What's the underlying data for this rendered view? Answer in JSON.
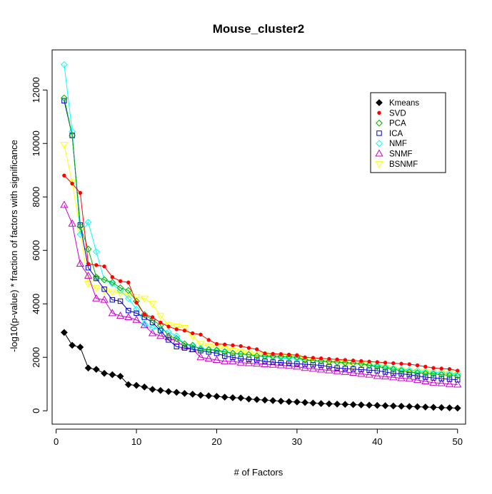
{
  "chart_data": {
    "type": "line",
    "title": "Mouse_cluster2",
    "xlabel": "# of Factors",
    "ylabel": "-log10(p-value) * fraction of factors with significance",
    "xlim": [
      -0.5,
      51
    ],
    "ylim": [
      -500,
      13500
    ],
    "xticks": [
      0,
      10,
      20,
      30,
      40,
      50
    ],
    "yticks": [
      0,
      2000,
      4000,
      6000,
      8000,
      10000,
      12000
    ],
    "grid": false,
    "legend_position": "top-right",
    "x": [
      1,
      2,
      3,
      4,
      5,
      6,
      7,
      8,
      9,
      10,
      11,
      12,
      13,
      14,
      15,
      16,
      17,
      18,
      19,
      20,
      21,
      22,
      23,
      24,
      25,
      26,
      27,
      28,
      29,
      30,
      31,
      32,
      33,
      34,
      35,
      36,
      37,
      38,
      39,
      40,
      41,
      42,
      43,
      44,
      45,
      46,
      47,
      48,
      49,
      50
    ],
    "series": [
      {
        "name": "Kmeans",
        "color": "#000000",
        "marker": "diamond-filled",
        "values": [
          2930,
          2450,
          2380,
          1600,
          1550,
          1400,
          1350,
          1290,
          980,
          950,
          890,
          800,
          760,
          720,
          690,
          650,
          620,
          580,
          560,
          540,
          510,
          490,
          480,
          440,
          420,
          400,
          380,
          360,
          340,
          330,
          310,
          290,
          270,
          260,
          250,
          240,
          230,
          220,
          210,
          200,
          190,
          180,
          170,
          160,
          150,
          140,
          130,
          120,
          110,
          100
        ]
      },
      {
        "name": "SVD",
        "color": "#ff0000",
        "marker": "dot-filled",
        "values": [
          8800,
          8500,
          8150,
          5500,
          5450,
          5400,
          5000,
          4850,
          4800,
          4050,
          3600,
          3500,
          3300,
          3150,
          3050,
          3000,
          2900,
          2850,
          2650,
          2500,
          2480,
          2450,
          2420,
          2350,
          2300,
          2150,
          2130,
          2120,
          2100,
          2080,
          2000,
          1980,
          1960,
          1940,
          1920,
          1900,
          1880,
          1860,
          1840,
          1820,
          1800,
          1780,
          1760,
          1740,
          1700,
          1650,
          1600,
          1580,
          1560,
          1500
        ]
      },
      {
        "name": "PCA",
        "color": "#00b000",
        "marker": "diamond-open",
        "values": [
          11700,
          10300,
          6900,
          6050,
          5000,
          4900,
          4800,
          4600,
          4500,
          4100,
          3600,
          3400,
          3200,
          2800,
          2700,
          2500,
          2450,
          2300,
          2280,
          2260,
          2200,
          2150,
          2130,
          2100,
          2050,
          2050,
          2040,
          2030,
          2020,
          2000,
          1900,
          1880,
          1860,
          1840,
          1820,
          1800,
          1780,
          1760,
          1700,
          1650,
          1600,
          1550,
          1500,
          1450,
          1420,
          1400,
          1380,
          1350,
          1330,
          1300
        ]
      },
      {
        "name": "ICA",
        "color": "#0000cc",
        "marker": "square-open",
        "values": [
          11600,
          10300,
          6950,
          5350,
          4950,
          4550,
          4150,
          4100,
          3750,
          3650,
          3500,
          3300,
          3000,
          2650,
          2400,
          2350,
          2300,
          2250,
          2200,
          2150,
          2050,
          2000,
          1950,
          1920,
          1900,
          1850,
          1820,
          1800,
          1780,
          1760,
          1740,
          1720,
          1700,
          1650,
          1600,
          1580,
          1560,
          1540,
          1520,
          1500,
          1450,
          1400,
          1380,
          1350,
          1300,
          1260,
          1230,
          1200,
          1180,
          1160
        ]
      },
      {
        "name": "NMF",
        "color": "#00ffff",
        "marker": "diamond-open",
        "values": [
          12950,
          10450,
          6600,
          7050,
          5950,
          4900,
          4750,
          4500,
          4200,
          3800,
          3250,
          3100,
          3050,
          2950,
          2800,
          2500,
          2400,
          2350,
          2300,
          2280,
          2220,
          2150,
          2120,
          2100,
          2050,
          2030,
          2000,
          1980,
          1960,
          1950,
          1900,
          1880,
          1860,
          1840,
          1820,
          1790,
          1780,
          1760,
          1720,
          1700,
          1650,
          1600,
          1550,
          1520,
          1500,
          1460,
          1440,
          1420,
          1400,
          1380
        ]
      },
      {
        "name": "SNMF",
        "color": "#cc00cc",
        "marker": "triangle-open",
        "values": [
          7700,
          7000,
          5500,
          5050,
          4200,
          4150,
          3650,
          3550,
          3500,
          3400,
          3200,
          2900,
          2800,
          2750,
          2600,
          2400,
          2300,
          2000,
          1950,
          1900,
          1850,
          1850,
          1800,
          1780,
          1760,
          1740,
          1720,
          1700,
          1680,
          1650,
          1600,
          1570,
          1540,
          1510,
          1480,
          1450,
          1420,
          1380,
          1350,
          1300,
          1280,
          1250,
          1220,
          1200,
          1150,
          1100,
          1050,
          1030,
          1000,
          980
        ]
      },
      {
        "name": "BSNMF",
        "color": "#ffff00",
        "marker": "triangle-down-open",
        "values": [
          9950,
          8550,
          6750,
          4750,
          4600,
          4500,
          4450,
          4400,
          4350,
          4250,
          4200,
          4000,
          3550,
          3200,
          3150,
          3100,
          2800,
          2500,
          2400,
          2350,
          2300,
          2250,
          2200,
          2150,
          2100,
          2080,
          2060,
          2040,
          2020,
          2000,
          1950,
          1900,
          1850,
          1800,
          1780,
          1760,
          1740,
          1720,
          1700,
          1650,
          1600,
          1550,
          1500,
          1480,
          1460,
          1440,
          1420,
          1400,
          1380,
          1350
        ]
      }
    ]
  }
}
